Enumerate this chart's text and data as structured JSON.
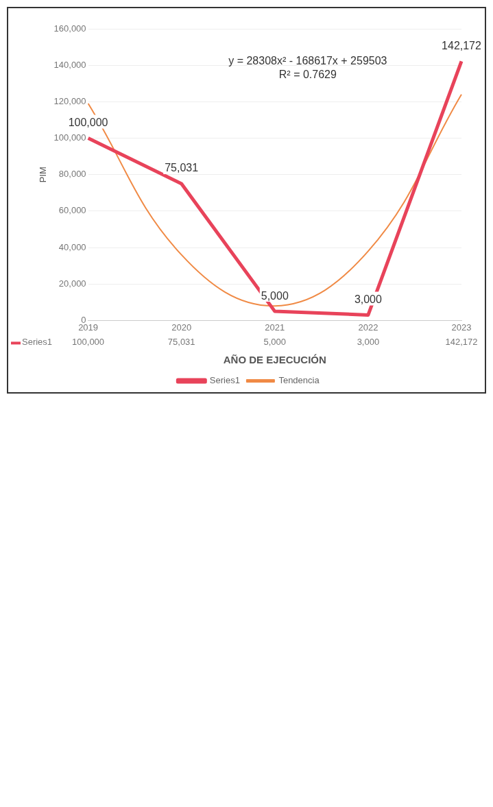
{
  "chart_data": {
    "type": "line",
    "xlabel": "AÑO DE EJECUCIÓN",
    "ylabel": "PIM",
    "categories": [
      "2019",
      "2020",
      "2021",
      "2022",
      "2023"
    ],
    "series": [
      {
        "name": "Series1",
        "color": "#e8435a",
        "values": [
          100000,
          75031,
          5000,
          3000,
          142172
        ]
      },
      {
        "name": "Tendencia",
        "color": "#f08a45",
        "values": [
          119000,
          36000,
          8000,
          38000,
          124000
        ]
      }
    ],
    "value_labels": [
      "100,000",
      "75,031",
      "5,000",
      "3,000",
      "142,172"
    ],
    "ylim": [
      0,
      160000
    ],
    "yticks": [
      {
        "value": 0,
        "label": "0"
      },
      {
        "value": 20000,
        "label": "20,000"
      },
      {
        "value": 40000,
        "label": "40,000"
      },
      {
        "value": 60000,
        "label": "60,000"
      },
      {
        "value": 80000,
        "label": "80,000"
      },
      {
        "value": 100000,
        "label": "100,000"
      },
      {
        "value": 120000,
        "label": "120,000"
      },
      {
        "value": 140000,
        "label": "140,000"
      },
      {
        "value": 160000,
        "label": "160,000"
      }
    ],
    "annotations": [
      "y = 28308x² - 168617x + 259503",
      "R² = 0.7629"
    ],
    "grid": "y",
    "legend": "bottom",
    "marker": "none",
    "line_style": "solid"
  }
}
